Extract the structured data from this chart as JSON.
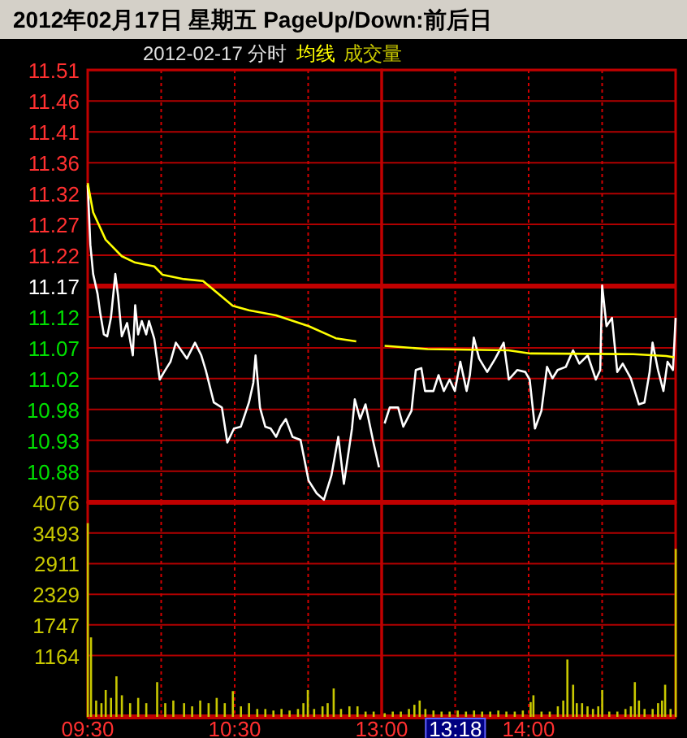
{
  "chart_data": [
    {
      "type": "line",
      "title": "2012年02月17日 星期五 PageUp/Down:前后日",
      "subtitle": "2012-02-17 分时",
      "xlim": [
        9.5,
        11.5
      ],
      "ylim": [
        10.83,
        11.51
      ],
      "xticks": [
        {
          "value": 10,
          "label": null
        },
        {
          "value": 10.5,
          "label": null
        },
        {
          "value": 11,
          "label": null
        }
      ],
      "yticks": [
        {
          "value": 10.879,
          "label": "10.88"
        },
        {
          "value": 10.9275,
          "label": "10.93"
        },
        {
          "value": 10.976,
          "label": "10.98"
        },
        {
          "value": 11.0245,
          "label": "11.02"
        },
        {
          "value": 11.073,
          "label": "11.07"
        },
        {
          "value": 11.1215,
          "label": "11.12"
        },
        11.17,
        {
          "value": 11.2185,
          "label": "11.22"
        },
        {
          "value": 11.267,
          "label": "11.27"
        },
        {
          "value": 11.3155,
          "label": "11.32"
        },
        {
          "value": 11.364,
          "label": "11.36"
        },
        {
          "value": 11.4125,
          "label": "11.41"
        },
        {
          "value": 11.461,
          "label": "11.46"
        },
        {
          "value": 11.5095,
          "label": "11.51"
        }
      ],
      "tick_labels": "y",
      "grid": true,
      "legend": "top right",
      "ref_lines": [
        {
          "axis": "y",
          "value": 11.17,
          "color": "#c00000"
        }
      ],
      "series": [
        {
          "color": "#ffffff",
          "x": [
            9.5,
            9.518,
            9.537,
            9.567,
            9.585,
            9.61,
            9.633,
            9.658,
            9.688,
            9.707,
            9.732,
            9.768,
            9.807,
            9.823,
            9.843,
            9.868,
            9.898,
            9.917,
            9.953,
            9.99,
            10.02,
            10.063,
            10.1,
            10.175,
            10.23,
            10.273,
            10.303,
            10.358,
            10.413,
            10.45,
            10.495,
            10.542,
            10.597,
            10.627,
            10.642,
            10.672,
            10.708,
            10.745,
            10.782,
            10.812,
            10.848,
            10.893,
            10.948,
            11.003,
            11.058,
            11.107,
            11.158,
            11.205,
            11.243,
            11.298,
            11.317,
            11.353,
            11.39,
            11.445,
            11.482
          ],
          "values": [
            11.329,
            11.235,
            11.189,
            11.158,
            11.128,
            11.094,
            11.091,
            11.12,
            11.189,
            11.154,
            11.091,
            11.112,
            11.061,
            11.14,
            11.094,
            11.115,
            11.094,
            11.115,
            11.087,
            11.023,
            11.035,
            11.051,
            11.081,
            11.056,
            11.081,
            11.061,
            11.038,
            10.987,
            10.979,
            10.924,
            10.946,
            10.949,
            10.987,
            11.018,
            11.061,
            10.979,
            10.949,
            10.946,
            10.933,
            10.949,
            10.961,
            10.933,
            10.928,
            10.864,
            10.844,
            10.834,
            10.872,
            10.933,
            10.859,
            10.946,
            10.992,
            10.961,
            10.984,
            10.923,
            10.885
          ]
        },
        {
          "name": "均线",
          "color": "#ffff00",
          "x": [
            9.5,
            9.537,
            9.622,
            9.732,
            9.823,
            9.953,
            10.008,
            10.155,
            10.285,
            10.487,
            10.597,
            10.782,
            11.003,
            11.188,
            11.327
          ],
          "values": [
            11.332,
            11.286,
            11.243,
            11.217,
            11.207,
            11.201,
            11.188,
            11.181,
            11.178,
            11.139,
            11.132,
            11.124,
            11.107,
            11.088,
            11.083
          ]
        }
      ]
    },
    {
      "type": "line",
      "xlim": [
        13,
        15
      ],
      "ylim": [
        10.83,
        11.51
      ],
      "xticks": [
        {
          "value": 13.5,
          "label": null
        },
        {
          "value": 14,
          "label": null
        },
        {
          "value": 14.5,
          "label": null
        }
      ],
      "yticks": [
        {
          "value": 10.879,
          "label": null
        },
        {
          "value": 10.9275,
          "label": null
        },
        {
          "value": 10.976,
          "label": null
        },
        {
          "value": 11.0245,
          "label": null
        },
        {
          "value": 11.073,
          "label": null
        },
        {
          "value": 11.1215,
          "label": null
        },
        {
          "value": 11.17,
          "label": null
        },
        {
          "value": 11.2185,
          "label": null
        },
        {
          "value": 11.267,
          "label": null
        },
        {
          "value": 11.3155,
          "label": null
        },
        {
          "value": 11.364,
          "label": null
        },
        {
          "value": 11.4125,
          "label": null
        },
        {
          "value": 11.461,
          "label": null
        },
        {
          "value": 11.5095,
          "label": null
        }
      ],
      "tick_labels": false,
      "grid": true,
      "ref_lines": [
        {
          "axis": "y",
          "value": 11.17,
          "color": "#c00000"
        }
      ],
      "series": [
        {
          "color": "#ffffff",
          "x": [
            13.02,
            13.055,
            13.112,
            13.147,
            13.203,
            13.232,
            13.27,
            13.295,
            13.352,
            13.387,
            13.423,
            13.462,
            13.498,
            13.535,
            13.578,
            13.6,
            13.627,
            13.663,
            13.718,
            13.773,
            13.83,
            13.865,
            13.922,
            13.977,
            14.007,
            14.043,
            14.087,
            14.125,
            14.162,
            14.197,
            14.253,
            14.302,
            14.345,
            14.402,
            14.457,
            14.487,
            14.5,
            14.53,
            14.567,
            14.603,
            14.64,
            14.695,
            14.75,
            14.788,
            14.823,
            14.843,
            14.88,
            14.917,
            14.945,
            14.982,
            15
          ],
          "values": [
            10.954,
            10.979,
            10.979,
            10.949,
            10.974,
            11.038,
            11.041,
            11.005,
            11.005,
            11.03,
            11.005,
            11.023,
            11.005,
            11.051,
            11.005,
            11.03,
            11.089,
            11.056,
            11.035,
            11.056,
            11.081,
            11.023,
            11.038,
            11.035,
            11.023,
            10.946,
            10.974,
            11.043,
            11.025,
            11.038,
            11.043,
            11.069,
            11.048,
            11.061,
            11.023,
            11.038,
            11.171,
            11.107,
            11.12,
            11.035,
            11.048,
            11.025,
            10.984,
            10.987,
            11.035,
            11.081,
            11.038,
            11.005,
            11.051,
            11.038,
            11.12
          ]
        },
        {
          "color": "#ffff00",
          "x": [
            13.02,
            13.313,
            13.862,
            14.013,
            14.713,
            14.935,
            14.99
          ],
          "values": [
            11.076,
            11.071,
            11.069,
            11.064,
            11.063,
            11.06,
            11.058
          ]
        }
      ]
    },
    {
      "type": "bar",
      "xlim": [
        9.5,
        11.5
      ],
      "ylim": [
        0,
        4076
      ],
      "xticks": [
        {
          "value": 9.5,
          "label": "09:30"
        },
        {
          "value": 10,
          "label": null
        },
        {
          "value": 10.5,
          "label": "10:30"
        },
        {
          "value": 11,
          "label": null
        }
      ],
      "yticks": [
        1164,
        1747,
        2329,
        2911,
        3493,
        4076
      ],
      "grid": true,
      "legend": "top right",
      "series": [
        {
          "name": "成交量",
          "color": "#c8c800",
          "x": [
            9.5,
            9.522,
            9.557,
            9.593,
            9.622,
            9.658,
            9.695,
            9.732,
            9.788,
            9.843,
            9.898,
            9.972,
            10.027,
            10.082,
            10.155,
            10.21,
            10.265,
            10.322,
            10.377,
            10.432,
            10.487,
            10.542,
            10.597,
            10.653,
            10.708,
            10.763,
            10.818,
            10.873,
            10.93,
            10.967,
            10.997,
            11.04,
            11.097,
            11.132,
            11.173,
            11.223,
            11.28,
            11.335,
            11.39,
            11.445
          ],
          "values": [
            3680,
            1510,
            310,
            260,
            510,
            360,
            770,
            410,
            260,
            360,
            260,
            660,
            260,
            310,
            260,
            200,
            310,
            260,
            360,
            260,
            490,
            200,
            260,
            150,
            150,
            120,
            150,
            120,
            150,
            260,
            510,
            150,
            200,
            260,
            540,
            150,
            200,
            200,
            100,
            100
          ]
        }
      ]
    },
    {
      "type": "bar",
      "xlim": [
        13,
        15
      ],
      "ylim": [
        0,
        4076
      ],
      "xticks": [
        {
          "value": 13,
          "label": "13:00"
        },
        {
          "value": 13.5,
          "label": null
        },
        {
          "value": 14,
          "label": "14:00"
        },
        {
          "value": 14.5,
          "label": null
        }
      ],
      "yticks": [
        {
          "value": 1164,
          "label": null
        },
        {
          "value": 1747,
          "label": null
        },
        {
          "value": 2329,
          "label": null
        },
        {
          "value": 2911,
          "label": null
        },
        {
          "value": 3493,
          "label": null
        },
        {
          "value": 4076,
          "label": null
        }
      ],
      "tick_labels": "x",
      "grid": true,
      "annotations": [
        {
          "text": "13:18",
          "x": 13.3,
          "y": 0
        }
      ],
      "series": [
        {
          "color": "#c8c800",
          "x": [
            13.02,
            13.075,
            13.13,
            13.185,
            13.222,
            13.258,
            13.297,
            13.352,
            13.407,
            13.462,
            13.517,
            13.573,
            13.628,
            13.683,
            13.738,
            13.793,
            13.848,
            13.905,
            13.96,
            14.013,
            14.032,
            14.087,
            14.143,
            14.198,
            14.235,
            14.263,
            14.302,
            14.327,
            14.363,
            14.4,
            14.437,
            14.473,
            14.5,
            14.548,
            14.603,
            14.658,
            14.695,
            14.722,
            14.75,
            14.788,
            14.843,
            14.88,
            14.907,
            14.928,
            14.965,
            15
          ],
          "values": [
            70,
            100,
            100,
            150,
            230,
            310,
            150,
            120,
            100,
            100,
            120,
            100,
            120,
            100,
            100,
            120,
            100,
            100,
            120,
            280,
            410,
            100,
            100,
            200,
            310,
            1090,
            610,
            260,
            260,
            200,
            150,
            200,
            510,
            100,
            100,
            150,
            200,
            660,
            310,
            150,
            150,
            260,
            310,
            610,
            150,
            3190
          ]
        }
      ]
    }
  ]
}
